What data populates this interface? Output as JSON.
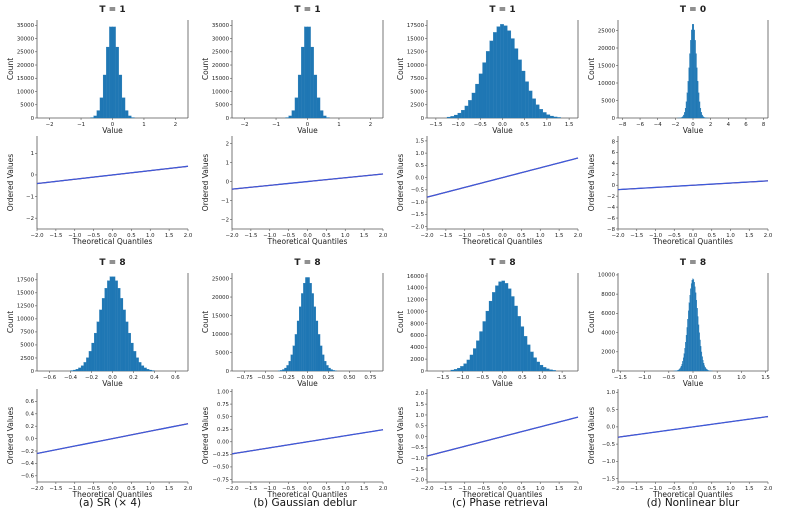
{
  "colors": {
    "bar": "#1f77b4",
    "qq_points": "#3b5bdb",
    "qq_line": "#cc0000",
    "axis": "#555555",
    "text": "#222222"
  },
  "captions": [
    "(a) SR (× 4)",
    "(b) Gaussian deblur",
    "(c) Phase retrieval",
    "(d) Nonlinear blur"
  ],
  "chart_data": [
    {
      "type": "bar",
      "panel": "hist-a-T1",
      "title": "T = 1",
      "xlabel": "Value",
      "ylabel": "Count",
      "xlim": [
        -2.4,
        2.4
      ],
      "ylim": [
        0,
        37000
      ],
      "xticks": [
        -2,
        -1,
        0,
        1,
        2
      ],
      "xticklabels": [
        "−2",
        "−1",
        "0",
        "1",
        "2"
      ],
      "yticks": [
        0,
        5000,
        10000,
        15000,
        20000,
        25000,
        30000,
        35000
      ],
      "yticklabels": [
        "0",
        "5000",
        "10000",
        "15000",
        "20000",
        "25000",
        "30000",
        "35000"
      ],
      "dist": {
        "mean": 0,
        "std": 0.2,
        "peak": 35500,
        "bin": 0.1,
        "range": [
          -0.7,
          0.7
        ]
      }
    },
    {
      "type": "bar",
      "panel": "hist-b-T1",
      "title": "T = 1",
      "xlabel": "Value",
      "ylabel": "Count",
      "xlim": [
        -2.4,
        2.4
      ],
      "ylim": [
        0,
        37000
      ],
      "xticks": [
        -2,
        -1,
        0,
        1,
        2
      ],
      "xticklabels": [
        "−2",
        "−1",
        "0",
        "1",
        "2"
      ],
      "yticks": [
        0,
        5000,
        10000,
        15000,
        20000,
        25000,
        30000,
        35000
      ],
      "yticklabels": [
        "0",
        "5000",
        "10000",
        "15000",
        "20000",
        "25000",
        "30000",
        "35000"
      ],
      "dist": {
        "mean": 0,
        "std": 0.2,
        "peak": 35500,
        "bin": 0.1,
        "range": [
          -0.7,
          0.7
        ]
      }
    },
    {
      "type": "bar",
      "panel": "hist-c-T1",
      "title": "T = 1",
      "xlabel": "Value",
      "ylabel": "Count",
      "xlim": [
        -1.7,
        1.7
      ],
      "ylim": [
        0,
        18500
      ],
      "xticks": [
        -1.5,
        -1,
        -0.5,
        0,
        0.5,
        1,
        1.5
      ],
      "xticklabels": [
        "−1.5",
        "−1.0",
        "−0.5",
        "0.0",
        "0.5",
        "1.0",
        "1.5"
      ],
      "yticks": [
        0,
        2500,
        5000,
        7500,
        10000,
        12500,
        15000,
        17500
      ],
      "yticklabels": [
        "0",
        "2500",
        "5000",
        "7500",
        "10000",
        "12500",
        "15000",
        "17500"
      ],
      "dist": {
        "mean": 0,
        "std": 0.4,
        "peak": 17700,
        "bin": 0.08,
        "range": [
          -1.25,
          1.25
        ]
      }
    },
    {
      "type": "bar",
      "panel": "hist-d-T0",
      "title": "T = 0",
      "xlabel": "Value",
      "ylabel": "Count",
      "xlim": [
        -8.5,
        8.5
      ],
      "ylim": [
        0,
        28000
      ],
      "xticks": [
        -8,
        -6,
        -4,
        -2,
        0,
        2,
        4,
        6,
        8
      ],
      "xticklabels": [
        "−8",
        "−6",
        "−4",
        "−2",
        "0",
        "2",
        "4",
        "6",
        "8"
      ],
      "yticks": [
        0,
        5000,
        10000,
        15000,
        20000,
        25000
      ],
      "yticklabels": [
        "0",
        "5000",
        "10000",
        "15000",
        "20000",
        "25000"
      ],
      "dist": {
        "mean": 0,
        "std": 0.4,
        "peak": 27000,
        "bin": 0.1,
        "range": [
          -2,
          2
        ]
      }
    },
    {
      "type": "line",
      "panel": "qq-a-T1",
      "xlabel": "Theoretical Quantiles",
      "ylabel": "Ordered Values",
      "xlim": [
        -2,
        2
      ],
      "ylim": [
        -2.5,
        1.8
      ],
      "xticks": [
        -2,
        -1.5,
        -1,
        -0.5,
        0,
        0.5,
        1,
        1.5,
        2
      ],
      "xticklabels": [
        "−2.0",
        "−1.5",
        "−1.0",
        "−0.5",
        "0.0",
        "0.5",
        "1.0",
        "1.5",
        "2.0"
      ],
      "yticks": [
        -2,
        -1,
        0,
        1
      ],
      "yticklabels": [
        "−2",
        "−1",
        "0",
        "1"
      ],
      "line": {
        "slope": 0.2,
        "intercept": 0
      }
    },
    {
      "type": "line",
      "panel": "qq-b-T1",
      "xlabel": "Theoretical Quantiles",
      "ylabel": "Ordered Values",
      "xlim": [
        -2,
        2
      ],
      "ylim": [
        -2.5,
        2.4
      ],
      "xticks": [
        -2,
        -1.5,
        -1,
        -0.5,
        0,
        0.5,
        1,
        1.5,
        2
      ],
      "xticklabels": [
        "−2.0",
        "−1.5",
        "−1.0",
        "−0.5",
        "0.0",
        "0.5",
        "1.0",
        "1.5",
        "2.0"
      ],
      "yticks": [
        -2,
        -1,
        0,
        1,
        2
      ],
      "yticklabels": [
        "−2",
        "−1",
        "0",
        "1",
        "2"
      ],
      "line": {
        "slope": 0.2,
        "intercept": 0
      }
    },
    {
      "type": "line",
      "panel": "qq-c-T1",
      "xlabel": "Theoretical Quantiles",
      "ylabel": "Ordered Values",
      "xlim": [
        -2,
        2
      ],
      "ylim": [
        -2.1,
        1.7
      ],
      "xticks": [
        -2,
        -1.5,
        -1,
        -0.5,
        0,
        0.5,
        1,
        1.5,
        2
      ],
      "xticklabels": [
        "−2.0",
        "−1.5",
        "−1.0",
        "−0.5",
        "0.0",
        "0.5",
        "1.0",
        "1.5",
        "2.0"
      ],
      "yticks": [
        -2,
        -1.5,
        -1,
        -0.5,
        0,
        0.5,
        1,
        1.5
      ],
      "yticklabels": [
        "−2.0",
        "−1.5",
        "−1.0",
        "−0.5",
        "0.0",
        "0.5",
        "1.0",
        "1.5"
      ],
      "line": {
        "slope": 0.4,
        "intercept": 0
      }
    },
    {
      "type": "line",
      "panel": "qq-d-T0",
      "xlabel": "Theoretical Quantiles",
      "ylabel": "Ordered Values",
      "xlim": [
        -2,
        2
      ],
      "ylim": [
        -8,
        9
      ],
      "xticks": [
        -2,
        -1.5,
        -1,
        -0.5,
        0,
        0.5,
        1,
        1.5,
        2
      ],
      "xticklabels": [
        "−2.0",
        "−1.5",
        "−1.0",
        "−0.5",
        "0.0",
        "0.5",
        "1.0",
        "1.5",
        "2.0"
      ],
      "yticks": [
        -8,
        -6,
        -4,
        -2,
        0,
        2,
        4,
        6,
        8
      ],
      "yticklabels": [
        "−8",
        "−6",
        "−4",
        "−2",
        "0",
        "2",
        "4",
        "6",
        "8"
      ],
      "line": {
        "slope": 0.4,
        "intercept": 0
      }
    },
    {
      "type": "bar",
      "panel": "hist-a-T8",
      "title": "T = 8",
      "xlabel": "Value",
      "ylabel": "Count",
      "xlim": [
        -0.72,
        0.72
      ],
      "ylim": [
        0,
        18800
      ],
      "xticks": [
        -0.6,
        -0.4,
        -0.2,
        0,
        0.2,
        0.4,
        0.6
      ],
      "xticklabels": [
        "−0.6",
        "−0.4",
        "−0.2",
        "0.0",
        "0.2",
        "0.4",
        "0.6"
      ],
      "yticks": [
        0,
        2500,
        5000,
        7500,
        10000,
        12500,
        15000,
        17500
      ],
      "yticklabels": [
        "0",
        "2500",
        "5000",
        "7500",
        "10000",
        "12500",
        "15000",
        "17500"
      ],
      "dist": {
        "mean": 0,
        "std": 0.12,
        "peak": 18200,
        "bin": 0.025,
        "range": [
          -0.4,
          0.4
        ]
      }
    },
    {
      "type": "bar",
      "panel": "hist-b-T8",
      "title": "T = 8",
      "xlabel": "Value",
      "ylabel": "Count",
      "xlim": [
        -0.9,
        0.9
      ],
      "ylim": [
        0,
        26500
      ],
      "xticks": [
        -0.75,
        -0.5,
        -0.25,
        0,
        0.25,
        0.5,
        0.75
      ],
      "xticklabels": [
        "−0.75",
        "−0.50",
        "−0.25",
        "0.00",
        "0.25",
        "0.50",
        "0.75"
      ],
      "yticks": [
        0,
        5000,
        10000,
        15000,
        20000,
        25000
      ],
      "yticklabels": [
        "0",
        "5000",
        "10000",
        "15000",
        "20000",
        "25000"
      ],
      "dist": {
        "mean": 0,
        "std": 0.1,
        "peak": 25500,
        "bin": 0.025,
        "range": [
          -0.35,
          0.35
        ]
      }
    },
    {
      "type": "bar",
      "panel": "hist-c-T8",
      "title": "T = 8",
      "xlabel": "Value",
      "ylabel": "Count",
      "xlim": [
        -1.9,
        1.9
      ],
      "ylim": [
        0,
        16500
      ],
      "xticks": [
        -1.5,
        -1,
        -0.5,
        0,
        0.5,
        1,
        1.5
      ],
      "xticklabels": [
        "−1.5",
        "−1.0",
        "−0.5",
        "0.0",
        "0.5",
        "1.0",
        "1.5"
      ],
      "yticks": [
        0,
        2000,
        4000,
        6000,
        8000,
        10000,
        12000,
        14000,
        16000
      ],
      "yticklabels": [
        "0",
        "2000",
        "4000",
        "6000",
        "8000",
        "10000",
        "12000",
        "14000",
        "16000"
      ],
      "dist": {
        "mean": 0,
        "std": 0.42,
        "peak": 15200,
        "bin": 0.08,
        "range": [
          -1.3,
          1.3
        ]
      }
    },
    {
      "type": "bar",
      "panel": "hist-d-T8",
      "title": "T = 8",
      "xlabel": "Value",
      "ylabel": "Count",
      "xlim": [
        -1.55,
        1.55
      ],
      "ylim": [
        0,
        10200
      ],
      "xticks": [
        -1.5,
        -1,
        -0.5,
        0,
        0.5,
        1,
        1.5
      ],
      "xticklabels": [
        "−1.5",
        "−1.0",
        "−0.5",
        "0.0",
        "0.5",
        "1.0",
        "1.5"
      ],
      "yticks": [
        0,
        2000,
        4000,
        6000,
        8000,
        10000
      ],
      "yticklabels": [
        "0",
        "2000",
        "4000",
        "6000",
        "8000",
        "10000"
      ],
      "dist": {
        "mean": 0,
        "std": 0.1,
        "peak": 9600,
        "bin": 0.015,
        "range": [
          -0.4,
          0.4
        ]
      }
    },
    {
      "type": "line",
      "panel": "qq-a-T8",
      "xlabel": "Theoretical Quantiles",
      "ylabel": "Ordered Values",
      "xlim": [
        -2,
        2
      ],
      "ylim": [
        -0.7,
        0.8
      ],
      "xticks": [
        -2,
        -1.5,
        -1,
        -0.5,
        0,
        0.5,
        1,
        1.5,
        2
      ],
      "xticklabels": [
        "−2.0",
        "−1.5",
        "−1.0",
        "−0.5",
        "0.0",
        "0.5",
        "1.0",
        "1.5",
        "2.0"
      ],
      "yticks": [
        -0.6,
        -0.4,
        -0.2,
        0,
        0.2,
        0.4,
        0.6
      ],
      "yticklabels": [
        "−0.6",
        "−0.4",
        "−0.2",
        "0.0",
        "0.2",
        "0.4",
        "0.6"
      ],
      "line": {
        "slope": 0.12,
        "intercept": 0
      }
    },
    {
      "type": "line",
      "panel": "qq-b-T8",
      "xlabel": "Theoretical Quantiles",
      "ylabel": "Ordered Values",
      "xlim": [
        -2,
        2
      ],
      "ylim": [
        -0.8,
        1.05
      ],
      "xticks": [
        -2,
        -1.5,
        -1,
        -0.5,
        0,
        0.5,
        1,
        1.5,
        2
      ],
      "xticklabels": [
        "−2.0",
        "−1.5",
        "−1.0",
        "−0.5",
        "0.0",
        "0.5",
        "1.0",
        "1.5",
        "2.0"
      ],
      "yticks": [
        -0.75,
        -0.5,
        -0.25,
        0,
        0.25,
        0.5,
        0.75,
        1
      ],
      "yticklabels": [
        "−0.75",
        "−0.50",
        "−0.25",
        "0.00",
        "0.25",
        "0.50",
        "0.75",
        "1.00"
      ],
      "line": {
        "slope": 0.12,
        "intercept": 0
      }
    },
    {
      "type": "line",
      "panel": "qq-c-T8",
      "xlabel": "Theoretical Quantiles",
      "ylabel": "Ordered Values",
      "xlim": [
        -2,
        2
      ],
      "ylim": [
        -2.1,
        2.2
      ],
      "xticks": [
        -2,
        -1.5,
        -1,
        -0.5,
        0,
        0.5,
        1,
        1.5,
        2
      ],
      "xticklabels": [
        "−2.0",
        "−1.5",
        "−1.0",
        "−0.5",
        "0.0",
        "0.5",
        "1.0",
        "1.5",
        "2.0"
      ],
      "yticks": [
        -2,
        -1.5,
        -1,
        -0.5,
        0,
        0.5,
        1,
        1.5,
        2
      ],
      "yticklabels": [
        "−2.0",
        "−1.5",
        "−1.0",
        "−0.5",
        "0.0",
        "0.5",
        "1.0",
        "1.5",
        "2.0"
      ],
      "line": {
        "slope": 0.45,
        "intercept": 0
      }
    },
    {
      "type": "line",
      "panel": "qq-d-T8",
      "xlabel": "Theoretical Quantiles",
      "ylabel": "Ordered Values",
      "xlim": [
        -2,
        2
      ],
      "ylim": [
        -1.6,
        1.1
      ],
      "xticks": [
        -2,
        -1.5,
        -1,
        -0.5,
        0,
        0.5,
        1,
        1.5,
        2
      ],
      "xticklabels": [
        "−2.0",
        "−1.5",
        "−1.0",
        "−0.5",
        "0.0",
        "0.5",
        "1.0",
        "1.5",
        "2.0"
      ],
      "yticks": [
        -1.5,
        -1,
        -0.5,
        0,
        0.5,
        1
      ],
      "yticklabels": [
        "−1.5",
        "−1.0",
        "−0.5",
        "0.0",
        "0.5",
        "1.0"
      ],
      "line": {
        "slope": 0.15,
        "intercept": 0
      }
    }
  ]
}
